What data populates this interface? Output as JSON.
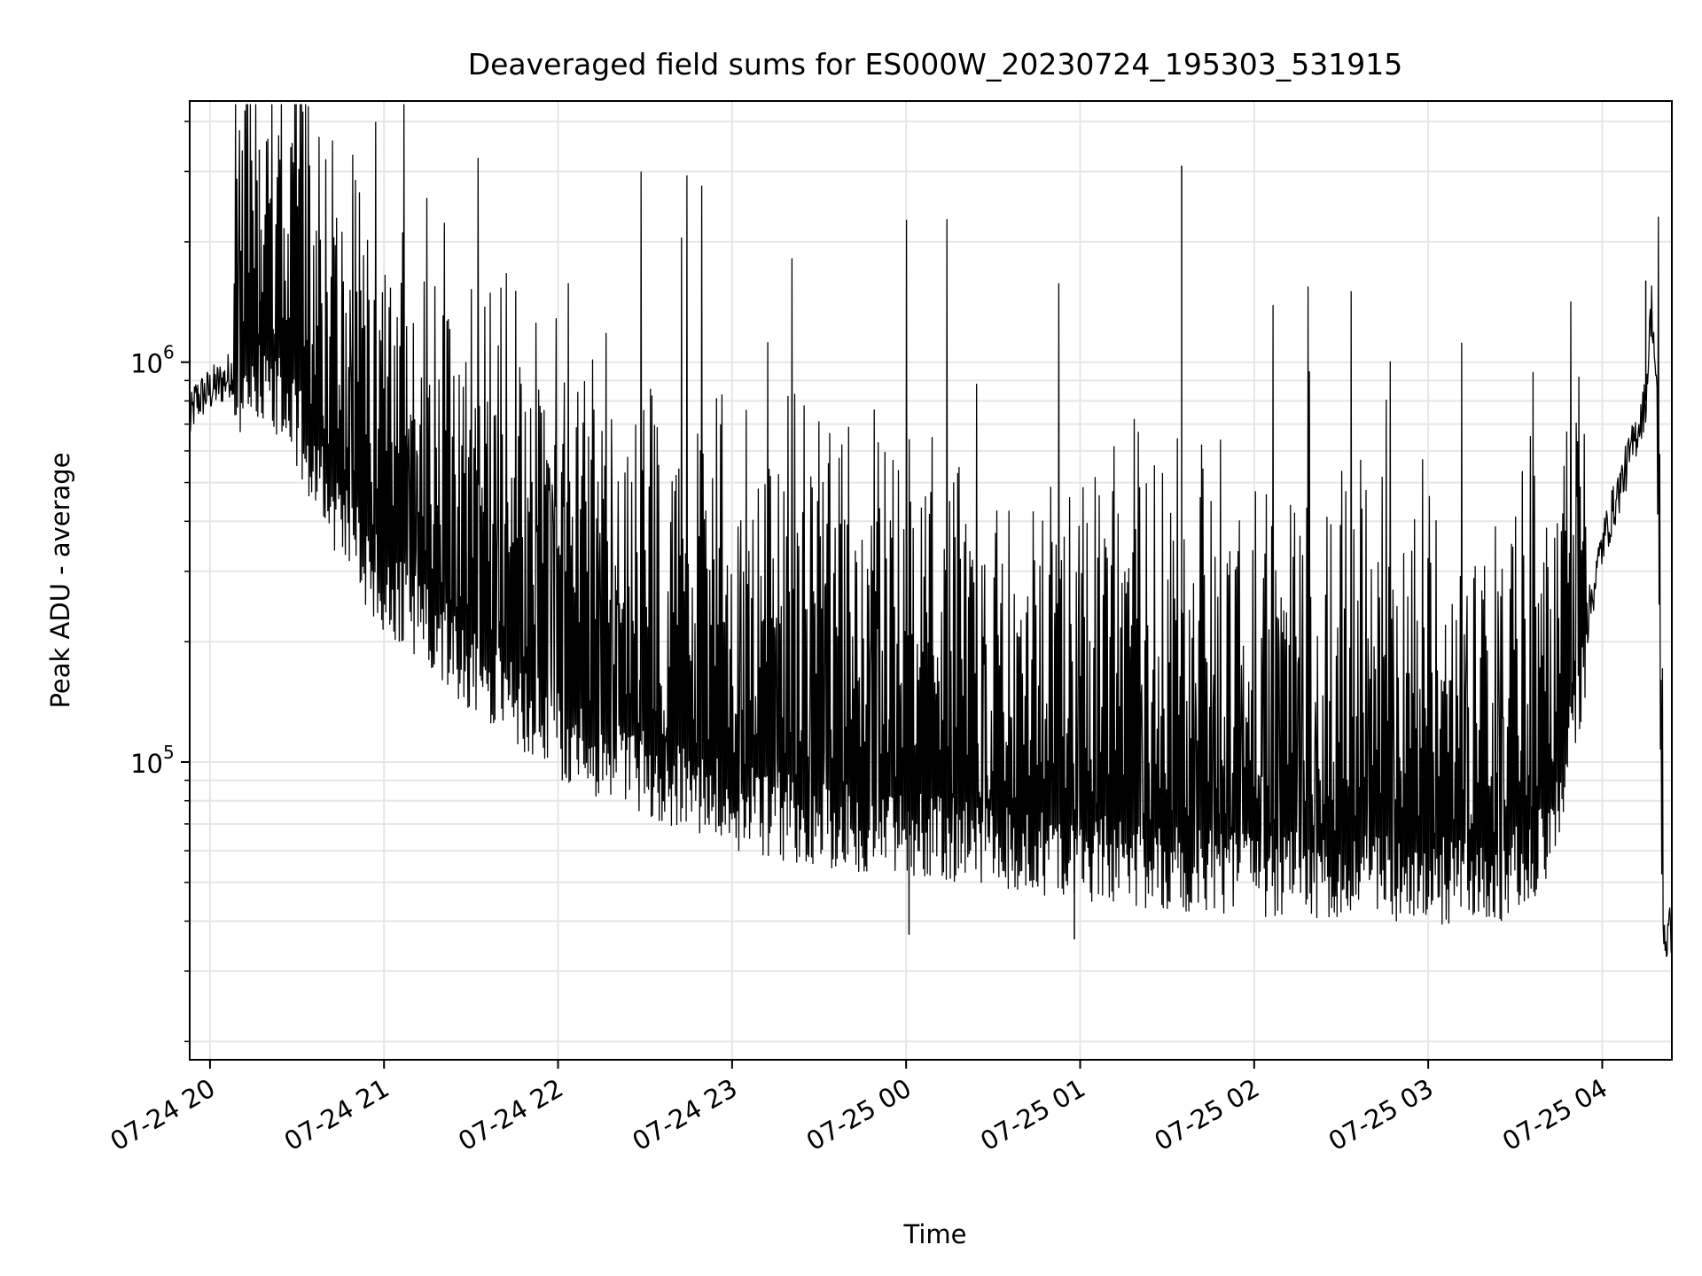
{
  "chart_data": {
    "type": "line",
    "title": "Deaveraged field sums for ES000W_20230724_195303_531915",
    "xlabel": "Time",
    "ylabel": "Peak ADU - average",
    "x_tick_labels": [
      "07-24 20",
      "07-24 21",
      "07-24 22",
      "07-24 23",
      "07-25 00",
      "07-25 01",
      "07-25 02",
      "07-25 03",
      "07-25 04"
    ],
    "x_tick_times": [
      "2023-07-24 20:00",
      "2023-07-24 21:00",
      "2023-07-24 22:00",
      "2023-07-24 23:00",
      "2023-07-25 00:00",
      "2023-07-25 01:00",
      "2023-07-25 02:00",
      "2023-07-25 03:00",
      "2023-07-25 04:00"
    ],
    "xlim": [
      "2023-07-24 19:53",
      "2023-07-25 04:24"
    ],
    "y_scale": "log",
    "ylim": [
      18000,
      4500000
    ],
    "y_tick_labels": [
      {
        "value": 100000,
        "base": "10",
        "exp": "5"
      },
      {
        "value": 1000000,
        "base": "10",
        "exp": "6"
      }
    ],
    "grid": true,
    "line_color": "#000000",
    "grid_color": "#e6e6e6",
    "series": [
      {
        "x": [
          "2023-07-24 19:53",
          "2023-07-24 19:55",
          "2023-07-24 20:00",
          "2023-07-24 20:05",
          "2023-07-24 20:10",
          "2023-07-24 20:15",
          "2023-07-24 20:18",
          "2023-07-24 20:25",
          "2023-07-24 20:30",
          "2023-07-24 20:40",
          "2023-07-24 20:50",
          "2023-07-24 21:00",
          "2023-07-24 21:15",
          "2023-07-24 21:30",
          "2023-07-24 21:45",
          "2023-07-24 22:00",
          "2023-07-24 22:30",
          "2023-07-24 23:00",
          "2023-07-24 23:30",
          "2023-07-25 00:00",
          "2023-07-25 00:30",
          "2023-07-25 01:00",
          "2023-07-25 01:30",
          "2023-07-25 02:00",
          "2023-07-25 02:30",
          "2023-07-25 03:00",
          "2023-07-25 03:25",
          "2023-07-25 03:40",
          "2023-07-25 03:50",
          "2023-07-25 04:00",
          "2023-07-25 04:10",
          "2023-07-25 04:15",
          "2023-07-25 04:17",
          "2023-07-25 04:19",
          "2023-07-25 04:21",
          "2023-07-25 04:22",
          "2023-07-25 04:23"
        ],
        "y": [
          700000,
          800000,
          850000,
          900000,
          1000000,
          1100000,
          1200000,
          1050000,
          900000,
          600000,
          450000,
          350000,
          280000,
          220000,
          180000,
          150000,
          120000,
          100000,
          90000,
          85000,
          80000,
          75000,
          70000,
          68000,
          66000,
          65000,
          66000,
          80000,
          150000,
          350000,
          600000,
          800000,
          1400000,
          800000,
          40000,
          35000,
          38000
        ]
      }
    ],
    "notable_peaks": [
      {
        "x": "2023-07-24 20:17",
        "y": 3400000
      },
      {
        "x": "2023-07-25 01:35",
        "y": 3100000
      },
      {
        "x": "2023-07-25 04:15",
        "y": 1600000
      }
    ],
    "notable_lows": [
      {
        "x": "2023-07-25 00:01",
        "y": 37000
      },
      {
        "x": "2023-07-25 00:58",
        "y": 36000
      },
      {
        "x": "2023-07-25 04:24",
        "y": 23000
      }
    ]
  }
}
